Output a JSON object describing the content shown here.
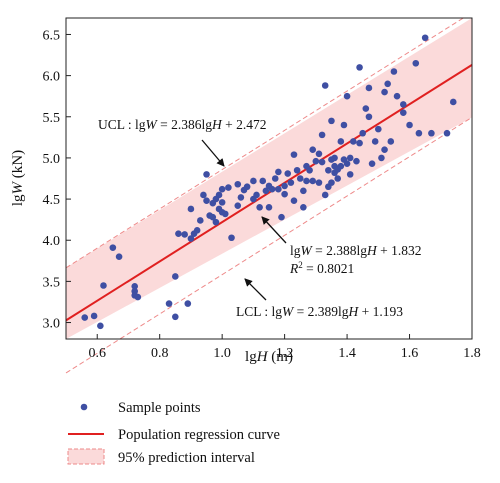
{
  "chart_data": {
    "type": "scatter",
    "xlabel": "lgH (m)",
    "ylabel": "lgW (kN)",
    "xlim": [
      0.5,
      1.8
    ],
    "ylim": [
      2.8,
      6.7
    ],
    "xticks": [
      0.6,
      0.8,
      1.0,
      1.2,
      1.4,
      1.6,
      1.8
    ],
    "yticks": [
      3.0,
      3.5,
      4.0,
      4.5,
      5.0,
      5.5,
      6.0,
      6.5
    ],
    "xtick_labels": [
      "0.6",
      "0.8",
      "1.0",
      "1.2",
      "1.4",
      "1.6",
      "1.8"
    ],
    "ytick_labels": [
      "3.0",
      "3.5",
      "4.0",
      "4.5",
      "5.0",
      "5.5",
      "6.0",
      "6.5"
    ],
    "grid": false,
    "legend_position": "bottom",
    "colors": {
      "points": "#3f4fa3",
      "regression": "#e02020",
      "band_fill": "#fbdada",
      "band_edge": "#ee8a8a"
    },
    "regression": {
      "slope": 2.388,
      "intercept": 1.832
    },
    "ucl": {
      "slope": 2.386,
      "intercept": 2.472
    },
    "lcl": {
      "slope": 2.389,
      "intercept": 1.193
    },
    "annotations": {
      "ucl": {
        "prefix": "UCL : lg",
        "v1": "W",
        "mid": " = 2.386lg",
        "v2": "H",
        "suffix": " + 2.472"
      },
      "reg": {
        "prefix": "lg",
        "v1": "W",
        "mid": " = 2.388lg",
        "v2": "H",
        "suffix": " + 1.832"
      },
      "r2": {
        "label": "R",
        "sup": "2",
        "value": " = 0.8021"
      },
      "lcl": {
        "prefix": "LCL : lg",
        "v1": "W",
        "mid": " = 2.389lg",
        "v2": "H",
        "suffix": " + 1.193"
      }
    },
    "legend": [
      "Sample points",
      "Population regression curve",
      "95% prediction interval"
    ],
    "points": [
      [
        0.56,
        3.06
      ],
      [
        0.59,
        3.08
      ],
      [
        0.61,
        2.96
      ],
      [
        0.62,
        3.45
      ],
      [
        0.65,
        3.91
      ],
      [
        0.67,
        3.8
      ],
      [
        0.72,
        3.44
      ],
      [
        0.72,
        3.38
      ],
      [
        0.72,
        3.33
      ],
      [
        0.73,
        3.31
      ],
      [
        0.83,
        3.23
      ],
      [
        0.85,
        3.07
      ],
      [
        0.85,
        3.56
      ],
      [
        0.86,
        4.08
      ],
      [
        0.88,
        4.07
      ],
      [
        0.89,
        3.23
      ],
      [
        0.9,
        4.38
      ],
      [
        0.9,
        4.02
      ],
      [
        0.91,
        4.08
      ],
      [
        0.92,
        4.12
      ],
      [
        0.93,
        4.24
      ],
      [
        0.94,
        4.55
      ],
      [
        0.95,
        4.48
      ],
      [
        0.95,
        4.8
      ],
      [
        0.96,
        4.3
      ],
      [
        0.97,
        4.28
      ],
      [
        0.97,
        4.45
      ],
      [
        0.98,
        4.22
      ],
      [
        0.98,
        4.5
      ],
      [
        0.99,
        4.38
      ],
      [
        0.99,
        4.55
      ],
      [
        1.0,
        4.46
      ],
      [
        1.0,
        4.62
      ],
      [
        1.0,
        4.34
      ],
      [
        1.01,
        4.32
      ],
      [
        1.02,
        4.64
      ],
      [
        1.03,
        4.03
      ],
      [
        1.05,
        4.42
      ],
      [
        1.05,
        4.68
      ],
      [
        1.06,
        4.52
      ],
      [
        1.07,
        4.61
      ],
      [
        1.08,
        4.65
      ],
      [
        1.1,
        4.5
      ],
      [
        1.1,
        4.72
      ],
      [
        1.11,
        4.55
      ],
      [
        1.12,
        4.4
      ],
      [
        1.13,
        4.72
      ],
      [
        1.14,
        4.6
      ],
      [
        1.15,
        4.4
      ],
      [
        1.15,
        4.66
      ],
      [
        1.16,
        4.62
      ],
      [
        1.17,
        4.75
      ],
      [
        1.18,
        4.62
      ],
      [
        1.19,
        4.28
      ],
      [
        1.2,
        4.66
      ],
      [
        1.2,
        4.56
      ],
      [
        1.21,
        4.81
      ],
      [
        1.22,
        4.7
      ],
      [
        1.23,
        5.04
      ],
      [
        1.24,
        4.85
      ],
      [
        1.25,
        4.75
      ],
      [
        1.26,
        4.6
      ],
      [
        1.26,
        4.4
      ],
      [
        1.27,
        4.72
      ],
      [
        1.28,
        4.85
      ],
      [
        1.29,
        5.1
      ],
      [
        1.3,
        4.96
      ],
      [
        1.31,
        4.7
      ],
      [
        1.32,
        4.95
      ],
      [
        1.32,
        5.28
      ],
      [
        1.33,
        5.88
      ],
      [
        1.33,
        4.55
      ],
      [
        1.34,
        4.85
      ],
      [
        1.34,
        4.65
      ],
      [
        1.35,
        4.98
      ],
      [
        1.35,
        4.7
      ],
      [
        1.36,
        4.82
      ],
      [
        1.36,
        4.9
      ],
      [
        1.36,
        5.0
      ],
      [
        1.37,
        4.86
      ],
      [
        1.37,
        4.75
      ],
      [
        1.38,
        4.9
      ],
      [
        1.38,
        5.2
      ],
      [
        1.39,
        4.98
      ],
      [
        1.4,
        5.75
      ],
      [
        1.4,
        4.93
      ],
      [
        1.41,
        4.8
      ],
      [
        1.41,
        5.0
      ],
      [
        1.42,
        5.2
      ],
      [
        1.43,
        4.96
      ],
      [
        1.44,
        6.1
      ],
      [
        1.45,
        5.3
      ],
      [
        1.46,
        5.6
      ],
      [
        1.47,
        5.5
      ],
      [
        1.48,
        4.93
      ],
      [
        1.49,
        5.2
      ],
      [
        1.5,
        5.35
      ],
      [
        1.51,
        5.0
      ],
      [
        1.52,
        5.1
      ],
      [
        1.53,
        5.9
      ],
      [
        1.54,
        5.2
      ],
      [
        1.55,
        6.05
      ],
      [
        1.56,
        5.75
      ],
      [
        1.58,
        5.55
      ],
      [
        1.6,
        5.4
      ],
      [
        1.62,
        6.15
      ],
      [
        1.63,
        5.3
      ],
      [
        1.65,
        6.46
      ],
      [
        1.67,
        5.3
      ],
      [
        1.72,
        5.3
      ],
      [
        1.74,
        5.68
      ],
      [
        1.35,
        5.45
      ],
      [
        1.52,
        5.8
      ],
      [
        1.18,
        4.83
      ],
      [
        1.29,
        4.72
      ],
      [
        1.44,
        5.18
      ],
      [
        1.39,
        5.4
      ],
      [
        1.58,
        5.65
      ],
      [
        1.47,
        5.85
      ],
      [
        1.31,
        5.05
      ],
      [
        1.27,
        4.9
      ],
      [
        1.23,
        4.48
      ]
    ]
  }
}
